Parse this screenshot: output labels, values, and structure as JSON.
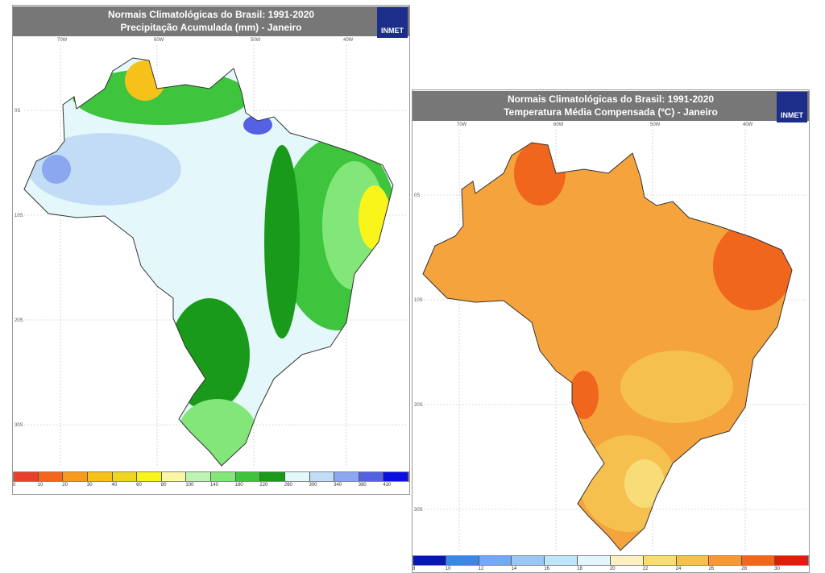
{
  "left_map": {
    "title_line1": "Normais Climatológicas do Brasil: 1991-2020",
    "title_line2": "Precipitação Acumulada (mm) - Janeiro",
    "logo": "INMET",
    "lon_ticks": [
      "70W",
      "60W",
      "50W",
      "40W"
    ],
    "lat_ticks": [
      "0S",
      "10S",
      "20S",
      "30S"
    ],
    "colorbar": {
      "labels": [
        "0",
        "10",
        "20",
        "30",
        "40",
        "60",
        "80",
        "100",
        "140",
        "180",
        "220",
        "260",
        "300",
        "340",
        "380",
        "420"
      ],
      "colors": [
        "#e8402a",
        "#f4661b",
        "#f89a1c",
        "#f6c21a",
        "#efd51e",
        "#f9f419",
        "#fbf7a8",
        "#bdf3b3",
        "#83e679",
        "#3ec43d",
        "#1a9a1a",
        "#e4f8fc",
        "#c2dcf6",
        "#8aa7ef",
        "#5461e3",
        "#0a10e0"
      ]
    }
  },
  "right_map": {
    "title_line1": "Normais Climatológicas do Brasil: 1991-2020",
    "title_line2": "Temperatura Média Compensada (ºC) - Janeiro",
    "logo": "INMET",
    "lon_ticks": [
      "70W",
      "60W",
      "50W",
      "40W"
    ],
    "lat_ticks": [
      "0S",
      "10S",
      "20S",
      "30S"
    ],
    "colorbar": {
      "labels": [
        "8",
        "10",
        "12",
        "14",
        "16",
        "18",
        "20",
        "22",
        "24",
        "26",
        "28",
        "30"
      ],
      "colors": [
        "#0618b0",
        "#3f86e0",
        "#72aaf0",
        "#98c8f4",
        "#bde6fa",
        "#e3f6fd",
        "#fcf0c0",
        "#f8dc78",
        "#f5c04e",
        "#f39a36",
        "#f0661c",
        "#e01e10"
      ]
    }
  }
}
